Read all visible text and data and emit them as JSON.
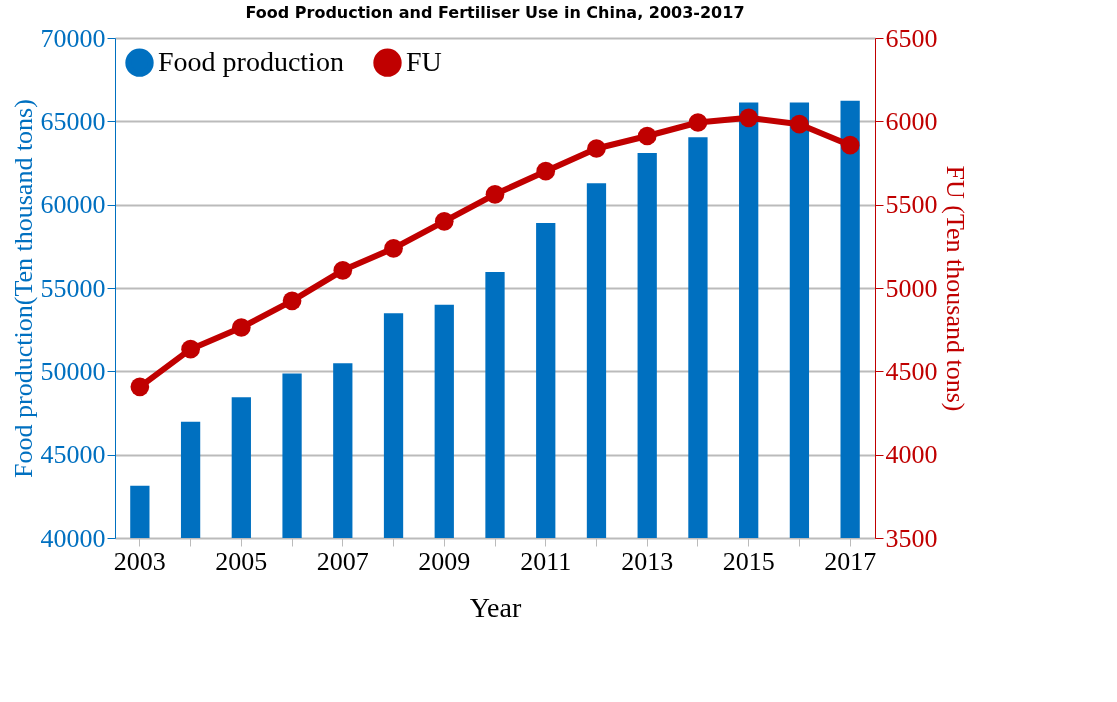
{
  "chart_data": {
    "type": "bar",
    "title": "Food Production and Fertiliser Use in China, 2003-2017",
    "xlabel": "Year",
    "ylabel": "Food production(Ten thousand tons)",
    "y2label": "FU (Ten thousand tons)",
    "categories": [
      "2003",
      null,
      "2005",
      null,
      "2007",
      null,
      "2009",
      null,
      "2011",
      null,
      "2013",
      null,
      "2015",
      null,
      "2017"
    ],
    "series": [
      {
        "name": "Food production",
        "color": "#0070c0",
        "values": [
          43130,
          46980,
          48450,
          49870,
          50480,
          53480,
          53990,
          55960,
          58900,
          61280,
          63100,
          64040,
          66130,
          66130,
          66230
        ]
      },
      {
        "name": "FU",
        "type": "line",
        "axis": "y2",
        "color": "#c00000",
        "values": [
          4407,
          4633,
          4763,
          4923,
          5106,
          5238,
          5400,
          5562,
          5701,
          5837,
          5912,
          5993,
          6021,
          5983,
          5857
        ]
      }
    ],
    "ylim": [
      40000,
      70000
    ],
    "yticks": [
      40000,
      45000,
      50000,
      55000,
      60000,
      65000,
      70000
    ],
    "y2lim": [
      3500,
      6500
    ],
    "y2ticks": [
      3500,
      4000,
      4500,
      5000,
      5500,
      6000,
      6500
    ],
    "grid": "y",
    "legend": "top left",
    "marker": "circle",
    "line_style": "solid"
  }
}
